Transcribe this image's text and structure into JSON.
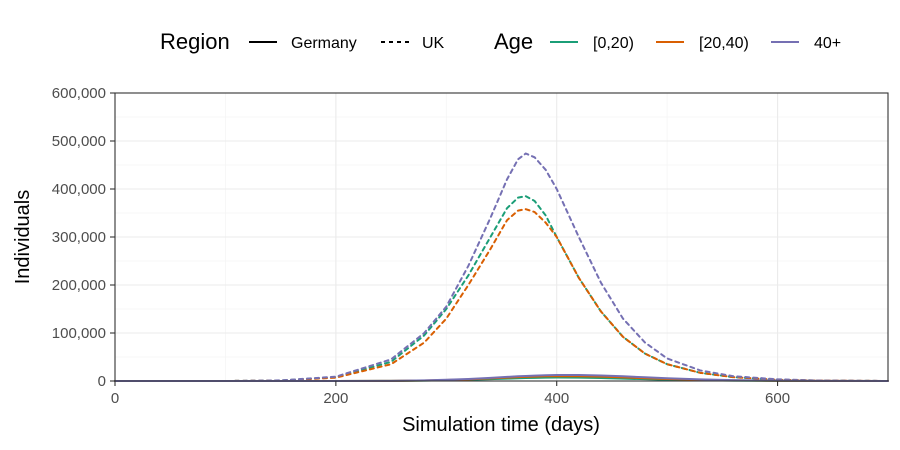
{
  "chart_data": {
    "type": "line",
    "xlabel": "Simulation time (days)",
    "ylabel": "Individuals",
    "xlim": [
      0,
      700
    ],
    "ylim": [
      0,
      600000
    ],
    "x_ticks": [
      0,
      200,
      400,
      600
    ],
    "x_tick_labels": [
      "0",
      "200",
      "400",
      "600"
    ],
    "y_ticks": [
      0,
      100000,
      200000,
      300000,
      400000,
      500000,
      600000
    ],
    "y_tick_labels": [
      "0",
      "100,000",
      "200,000",
      "300,000",
      "400,000",
      "500,000",
      "600,000"
    ],
    "grid": true,
    "legend_position": "top",
    "legend": {
      "region_title": "Region",
      "region_items": [
        {
          "label": "Germany",
          "dash": "solid"
        },
        {
          "label": "UK",
          "dash": "dashed"
        }
      ],
      "age_title": "Age",
      "age_items": [
        {
          "label": "[0,20)",
          "color": "#1b9e77"
        },
        {
          "label": "[20,40)",
          "color": "#d95f02"
        },
        {
          "label": "40+",
          "color": "#7570b3"
        }
      ]
    },
    "x": [
      0,
      100,
      150,
      200,
      250,
      280,
      300,
      320,
      340,
      355,
      365,
      372,
      380,
      390,
      400,
      420,
      440,
      460,
      480,
      500,
      530,
      560,
      600,
      640,
      700
    ],
    "series": [
      {
        "region": "UK",
        "age": "[0,20)",
        "color": "#1b9e77",
        "dash": "dashed",
        "values": [
          0,
          0,
          1000,
          8000,
          40000,
          95000,
          150000,
          220000,
          300000,
          360000,
          382000,
          385000,
          375000,
          345000,
          300000,
          215000,
          145000,
          92000,
          57000,
          35000,
          17000,
          8000,
          2500,
          700,
          0
        ]
      },
      {
        "region": "UK",
        "age": "[20,40)",
        "color": "#d95f02",
        "dash": "dashed",
        "values": [
          0,
          0,
          900,
          7000,
          35000,
          80000,
          130000,
          200000,
          275000,
          335000,
          355000,
          358000,
          352000,
          330000,
          300000,
          215000,
          145000,
          92000,
          57000,
          35000,
          17000,
          8000,
          2500,
          700,
          0
        ]
      },
      {
        "region": "UK",
        "age": "40+",
        "color": "#7570b3",
        "dash": "dashed",
        "values": [
          0,
          0,
          1200,
          9000,
          45000,
          100000,
          155000,
          240000,
          340000,
          420000,
          462000,
          474000,
          466000,
          440000,
          400000,
          300000,
          205000,
          130000,
          80000,
          47000,
          22000,
          10000,
          3500,
          900,
          0
        ]
      },
      {
        "region": "Germany",
        "age": "[0,20)",
        "color": "#1b9e77",
        "dash": "solid",
        "values": [
          0,
          0,
          0,
          0,
          200,
          800,
          1500,
          2500,
          4000,
          5000,
          5800,
          6200,
          6600,
          7000,
          7200,
          7000,
          6200,
          5000,
          3800,
          2700,
          1500,
          800,
          300,
          100,
          0
        ]
      },
      {
        "region": "Germany",
        "age": "[20,40)",
        "color": "#d95f02",
        "dash": "solid",
        "values": [
          0,
          0,
          0,
          0,
          250,
          1000,
          2000,
          3500,
          5500,
          7000,
          8000,
          8600,
          9200,
          9800,
          10200,
          10000,
          9000,
          7500,
          5800,
          4200,
          2500,
          1300,
          500,
          150,
          0
        ]
      },
      {
        "region": "Germany",
        "age": "40+",
        "color": "#7570b3",
        "dash": "solid",
        "values": [
          0,
          0,
          0,
          0,
          300,
          1200,
          2500,
          4200,
          6500,
          8500,
          9800,
          10500,
          11300,
          12000,
          12500,
          12500,
          11500,
          9800,
          7800,
          5800,
          3500,
          1900,
          700,
          200,
          0
        ]
      }
    ]
  }
}
